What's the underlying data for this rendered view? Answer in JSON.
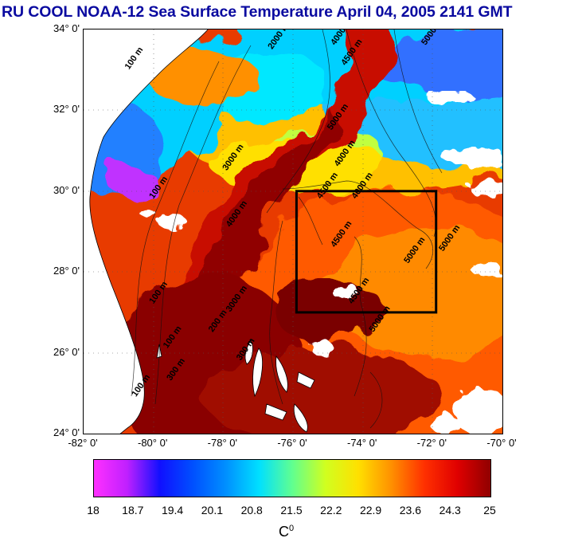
{
  "title": "RU COOL  NOAA-12 Sea Surface Temperature April 04, 2005 2141 GMT",
  "map": {
    "lat_labels": [
      {
        "label": "34° 0'",
        "lat": 34
      },
      {
        "label": "32° 0'",
        "lat": 32
      },
      {
        "label": "30° 0'",
        "lat": 30
      },
      {
        "label": "28° 0'",
        "lat": 28
      },
      {
        "label": "26° 0'",
        "lat": 26
      },
      {
        "label": "24° 0'",
        "lat": 24
      }
    ],
    "lon_labels": [
      {
        "label": "-82° 0'",
        "lon": -82
      },
      {
        "label": "-80° 0'",
        "lon": -80
      },
      {
        "label": "-78° 0'",
        "lon": -78
      },
      {
        "label": "-76° 0'",
        "lon": -76
      },
      {
        "label": "-74° 0'",
        "lon": -74
      },
      {
        "label": "-72° 0'",
        "lon": -72
      },
      {
        "label": "-70° 0'",
        "lon": -70
      }
    ],
    "lat_range": [
      24,
      34
    ],
    "lon_range": [
      -82,
      -70
    ],
    "study_box": {
      "lon_min": -75.9,
      "lon_max": -71.9,
      "lat_min": 27.0,
      "lat_max": 30.0
    },
    "depth_labels": [
      {
        "text": "100 m",
        "lon": -80.7,
        "lat": 33.0
      },
      {
        "text": "2000 m",
        "lon": -76.6,
        "lat": 33.5
      },
      {
        "text": "4000 m",
        "lon": -74.8,
        "lat": 33.6
      },
      {
        "text": "4500 m",
        "lon": -74.5,
        "lat": 33.1
      },
      {
        "text": "5000 m",
        "lon": -72.2,
        "lat": 33.6
      },
      {
        "text": "5000 m",
        "lon": -74.9,
        "lat": 31.5
      },
      {
        "text": "3000 m",
        "lon": -77.9,
        "lat": 30.5
      },
      {
        "text": "4000 m",
        "lon": -74.7,
        "lat": 30.6
      },
      {
        "text": "4500 m",
        "lon": -75.2,
        "lat": 29.8
      },
      {
        "text": "4000 m",
        "lon": -74.2,
        "lat": 29.8
      },
      {
        "text": "4000 m",
        "lon": -77.8,
        "lat": 29.1
      },
      {
        "text": "4500 m",
        "lon": -74.8,
        "lat": 28.6
      },
      {
        "text": "5000 m",
        "lon": -72.7,
        "lat": 28.2
      },
      {
        "text": "5000 m",
        "lon": -71.7,
        "lat": 28.5
      },
      {
        "text": "4500 m",
        "lon": -74.3,
        "lat": 27.2
      },
      {
        "text": "5000 m",
        "lon": -73.7,
        "lat": 26.5
      },
      {
        "text": "3000 m",
        "lon": -77.8,
        "lat": 27.0
      },
      {
        "text": "100 m",
        "lon": -80.0,
        "lat": 27.2
      },
      {
        "text": "100 m",
        "lon": -79.6,
        "lat": 26.1
      },
      {
        "text": "100 m",
        "lon": -80.5,
        "lat": 24.9
      },
      {
        "text": "100 m",
        "lon": -80.0,
        "lat": 29.8
      },
      {
        "text": "300 m",
        "lon": -79.5,
        "lat": 25.3
      },
      {
        "text": "300 m",
        "lon": -77.5,
        "lat": 25.8
      },
      {
        "text": "200 m",
        "lon": -78.3,
        "lat": 26.5
      }
    ]
  },
  "colorbar": {
    "unit_base": "C",
    "unit_sup": "0",
    "ticks": [
      "18",
      "18.7",
      "19.4",
      "20.1",
      "20.8",
      "21.5",
      "22.2",
      "22.9",
      "23.6",
      "24.3",
      "25"
    ],
    "colors": [
      "#ff30ff",
      "#c020ff",
      "#1010ff",
      "#0050ff",
      "#0090ff",
      "#00e0ff",
      "#60ff90",
      "#d0ff20",
      "#ffe000",
      "#ff9000",
      "#ff3000",
      "#e00000",
      "#900000"
    ]
  }
}
